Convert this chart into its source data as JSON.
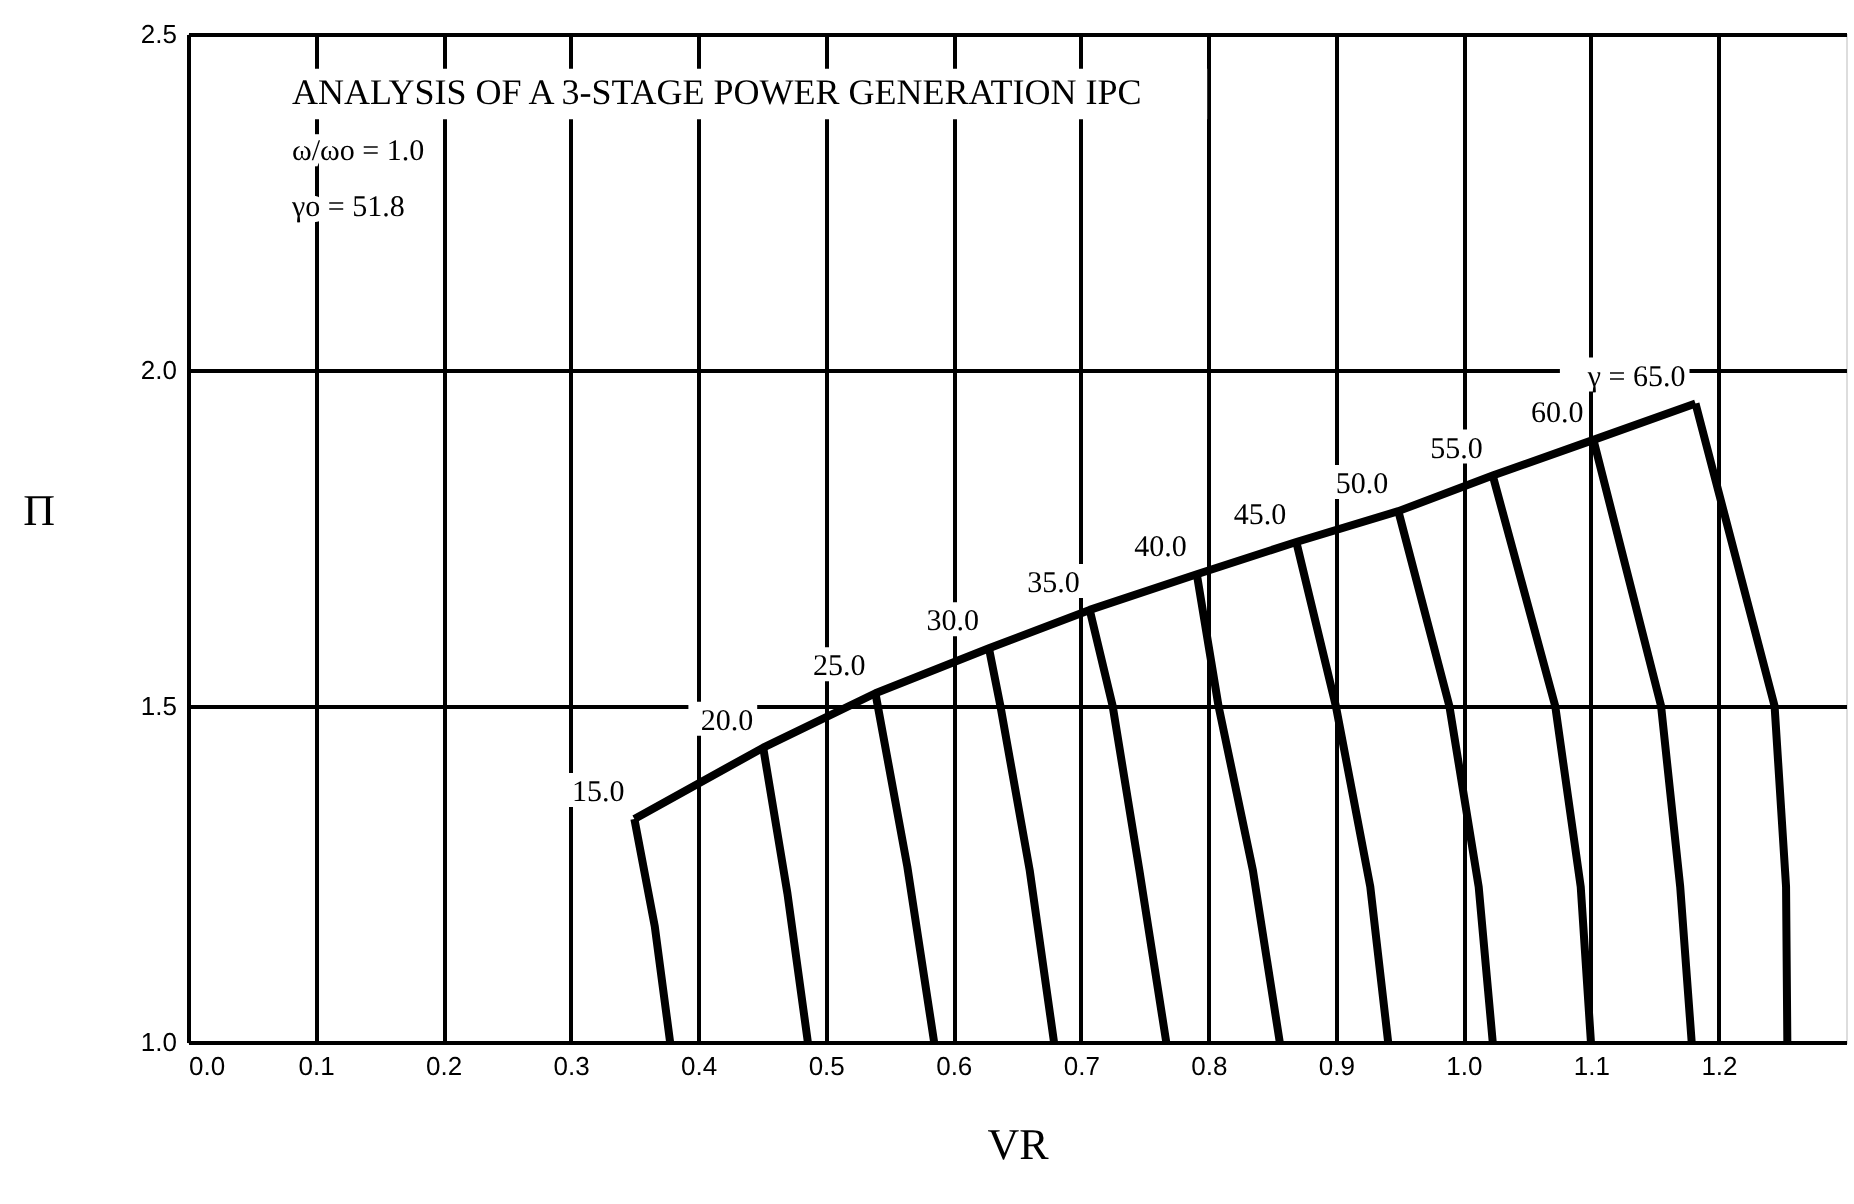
{
  "chart_data": {
    "type": "line",
    "title": "ANALYSIS OF A 3-STAGE POWER GENERATION IPC",
    "xlabel": "VR",
    "ylabel": "Π",
    "annotations": [
      "ω/ωo =    1.0",
      "γo =   51.8",
      {
        "text": "15.0",
        "x": 0.35,
        "y": 1.332
      },
      {
        "text": "20.0",
        "x": 0.451,
        "y": 1.438
      },
      {
        "text": "25.0",
        "x": 0.539,
        "y": 1.519
      },
      {
        "text": "30.0",
        "x": 0.628,
        "y": 1.586
      },
      {
        "text": "35.0",
        "x": 0.707,
        "y": 1.643
      },
      {
        "text": "40.0",
        "x": 0.791,
        "y": 1.696
      },
      {
        "text": "45.0",
        "x": 0.869,
        "y": 1.744
      },
      {
        "text": "50.0",
        "x": 0.949,
        "y": 1.79
      },
      {
        "text": "55.0",
        "x": 1.023,
        "y": 1.843
      },
      {
        "text": "60.0",
        "x": 1.102,
        "y": 1.896
      },
      {
        "text": "γ = 65.0",
        "x": 1.182,
        "y": 1.95
      }
    ],
    "series": [
      {
        "color": "#000000",
        "x": [
          0.35,
          0.451,
          0.539,
          0.628,
          0.707,
          0.791,
          0.869,
          0.949,
          1.023,
          1.102,
          1.182
        ],
        "values": [
          1.332,
          1.438,
          1.519,
          1.586,
          1.643,
          1.696,
          1.744,
          1.79,
          1.843,
          1.896,
          1.95
        ]
      },
      {
        "color": "#000000",
        "x": [
          0.35,
          0.366,
          0.378
        ],
        "values": [
          1.332,
          1.172,
          1.0
        ]
      },
      {
        "color": "#000000",
        "x": [
          0.451,
          0.47,
          0.486
        ],
        "values": [
          1.438,
          1.221,
          1.0
        ]
      },
      {
        "color": "#000000",
        "x": [
          0.539,
          0.564,
          0.585
        ],
        "values": [
          1.519,
          1.261,
          1.0
        ]
      },
      {
        "color": "#000000",
        "x": [
          0.628,
          0.637,
          0.66,
          0.679
        ],
        "values": [
          1.586,
          1.5,
          1.255,
          1.0
        ]
      },
      {
        "color": "#000000",
        "x": [
          0.707,
          0.725,
          0.746,
          0.767
        ],
        "values": [
          1.643,
          1.5,
          1.255,
          1.0
        ]
      },
      {
        "color": "#000000",
        "x": [
          0.791,
          0.808,
          0.835,
          0.856
        ],
        "values": [
          1.696,
          1.5,
          1.255,
          1.0
        ]
      },
      {
        "color": "#000000",
        "x": [
          0.869,
          0.9,
          0.927,
          0.941
        ],
        "values": [
          1.744,
          1.5,
          1.231,
          1.0
        ]
      },
      {
        "color": "#000000",
        "x": [
          0.949,
          0.989,
          1.012,
          1.023
        ],
        "values": [
          1.79,
          1.5,
          1.231,
          1.0
        ]
      },
      {
        "color": "#000000",
        "x": [
          1.023,
          1.072,
          1.092,
          1.1
        ],
        "values": [
          1.843,
          1.5,
          1.231,
          1.0
        ]
      },
      {
        "color": "#000000",
        "x": [
          1.102,
          1.155,
          1.17,
          1.179
        ],
        "values": [
          1.896,
          1.5,
          1.231,
          1.0
        ]
      },
      {
        "color": "#000000",
        "x": [
          1.182,
          1.244,
          1.253,
          1.254
        ],
        "values": [
          1.95,
          1.5,
          1.231,
          1.0
        ]
      }
    ],
    "xlim": [
      0,
      1.3
    ],
    "xticks": [
      {
        "value": 0,
        "label": "0.0"
      },
      0.1,
      0.2,
      0.3,
      0.4,
      0.5,
      0.6,
      0.7,
      0.8,
      0.9,
      {
        "value": 1,
        "label": "1.0"
      },
      1.1,
      1.2
    ],
    "ylim": [
      1,
      2.5
    ],
    "yticks": [
      {
        "value": 1,
        "label": "1.0"
      },
      1.5,
      {
        "value": 2,
        "label": "2.0"
      },
      2.5
    ],
    "grid": true,
    "marker": "none",
    "line_style": "solid"
  }
}
